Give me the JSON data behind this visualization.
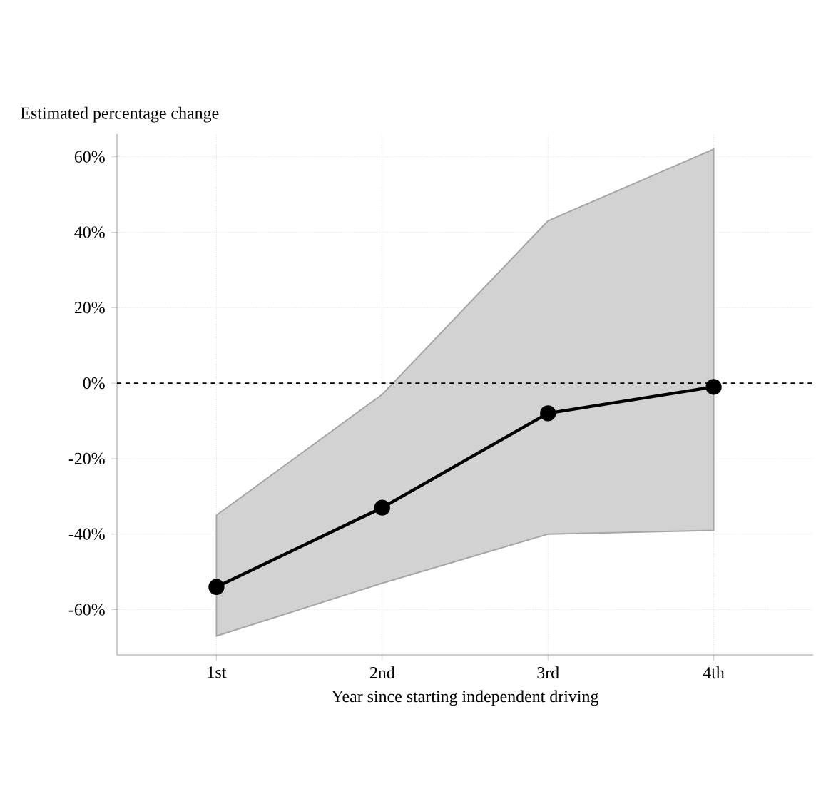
{
  "chart_data": {
    "type": "line",
    "ylabel": "Estimated percentage change",
    "xlabel": "Year since starting independent driving",
    "categories": [
      "1st",
      "2nd",
      "3rd",
      "4th"
    ],
    "series": [
      {
        "color": "#000000",
        "values": [
          -54,
          -33,
          -8,
          -1
        ],
        "lower": [
          -67,
          -53,
          -40,
          -39
        ],
        "upper": [
          -35,
          -3,
          43,
          62
        ]
      }
    ],
    "ylim": [
      -72,
      66
    ],
    "yticks": [
      {
        "value": -60,
        "label": "-60%"
      },
      {
        "value": -40,
        "label": "-40%"
      },
      {
        "value": -20,
        "label": "-20%"
      },
      {
        "value": 0,
        "label": "0%"
      },
      {
        "value": 20,
        "label": "20%"
      },
      {
        "value": 40,
        "label": "40%"
      },
      {
        "value": 60,
        "label": "60%"
      }
    ],
    "ref_lines": [
      {
        "axis": "y",
        "value": 0,
        "line_style": "dashed",
        "color": "#000000"
      }
    ],
    "grid": true,
    "marker": "circle",
    "line_style": "solid"
  }
}
